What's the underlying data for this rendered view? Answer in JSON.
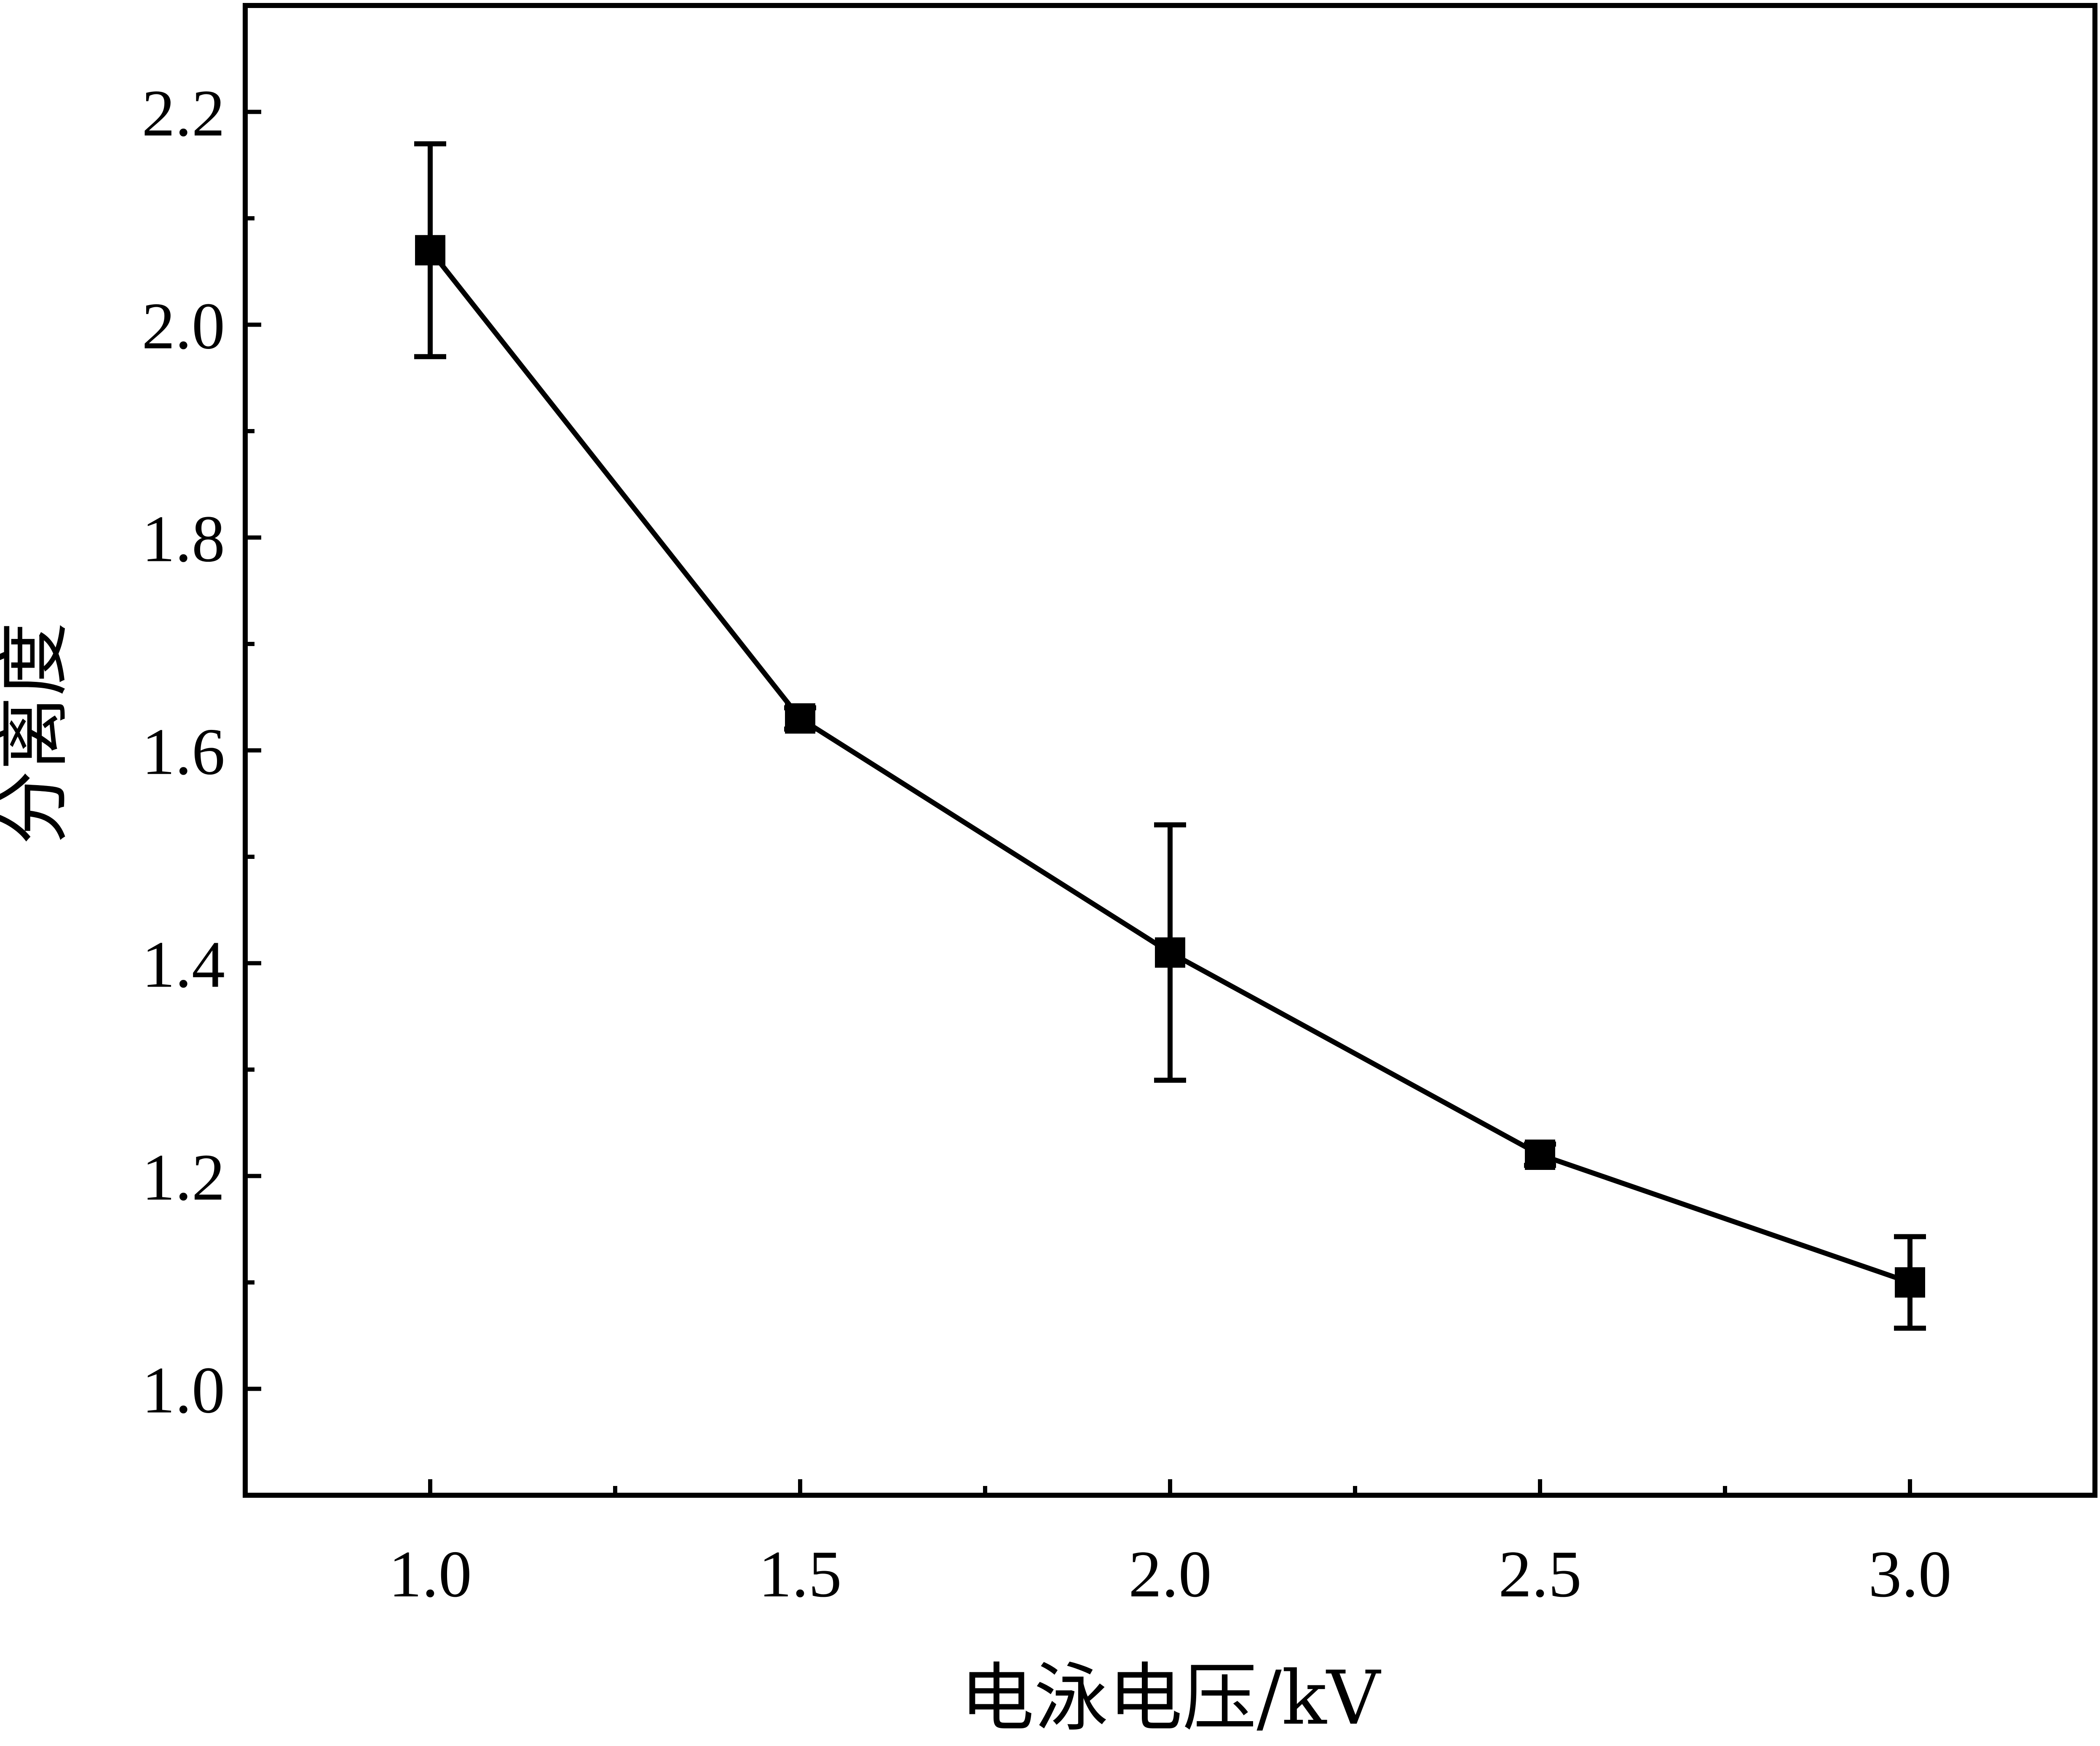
{
  "chart_data": {
    "type": "line",
    "title": "",
    "xlabel": "电泳电压/kV",
    "ylabel": "分离度",
    "xlim": [
      0.75,
      3.25
    ],
    "ylim": [
      0.9,
      2.3
    ],
    "x_ticks": [
      "1.0",
      "1.5",
      "2.0",
      "2.5",
      "3.0"
    ],
    "y_ticks": [
      "1.0",
      "1.2",
      "1.4",
      "1.6",
      "1.8",
      "2.0",
      "2.2"
    ],
    "grid": false,
    "legend": "none",
    "marker": "square",
    "color": "#000000",
    "series": [
      {
        "x": [
          1.0,
          1.5,
          2.0,
          2.5,
          3.0
        ],
        "y": [
          2.07,
          1.63,
          1.41,
          1.22,
          1.1
        ],
        "error": [
          0.1,
          0.01,
          0.12,
          0.01,
          0.043
        ]
      }
    ]
  }
}
